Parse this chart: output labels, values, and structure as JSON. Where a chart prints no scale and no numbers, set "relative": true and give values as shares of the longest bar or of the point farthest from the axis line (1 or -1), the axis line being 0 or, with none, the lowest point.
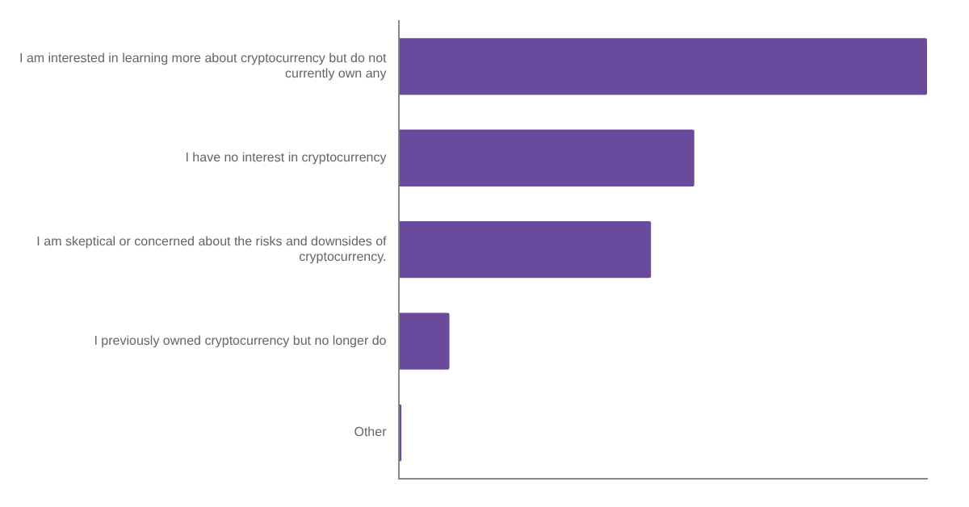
{
  "chart_data": {
    "type": "bar",
    "orientation": "horizontal",
    "relative": true,
    "categories": [
      "I am interested in learning more about cryptocurrency but do not currently own any",
      "I have no interest in cryptocurrency",
      "I am skeptical or concerned about the risks and downsides of cryptocurrency.",
      "I previously owned cryptocurrency but no longer do",
      "Other"
    ],
    "values": [
      1,
      0.559,
      0.477,
      0.095,
      0.004
    ],
    "color": "#6a4a9c",
    "grid": false,
    "legend": false
  }
}
